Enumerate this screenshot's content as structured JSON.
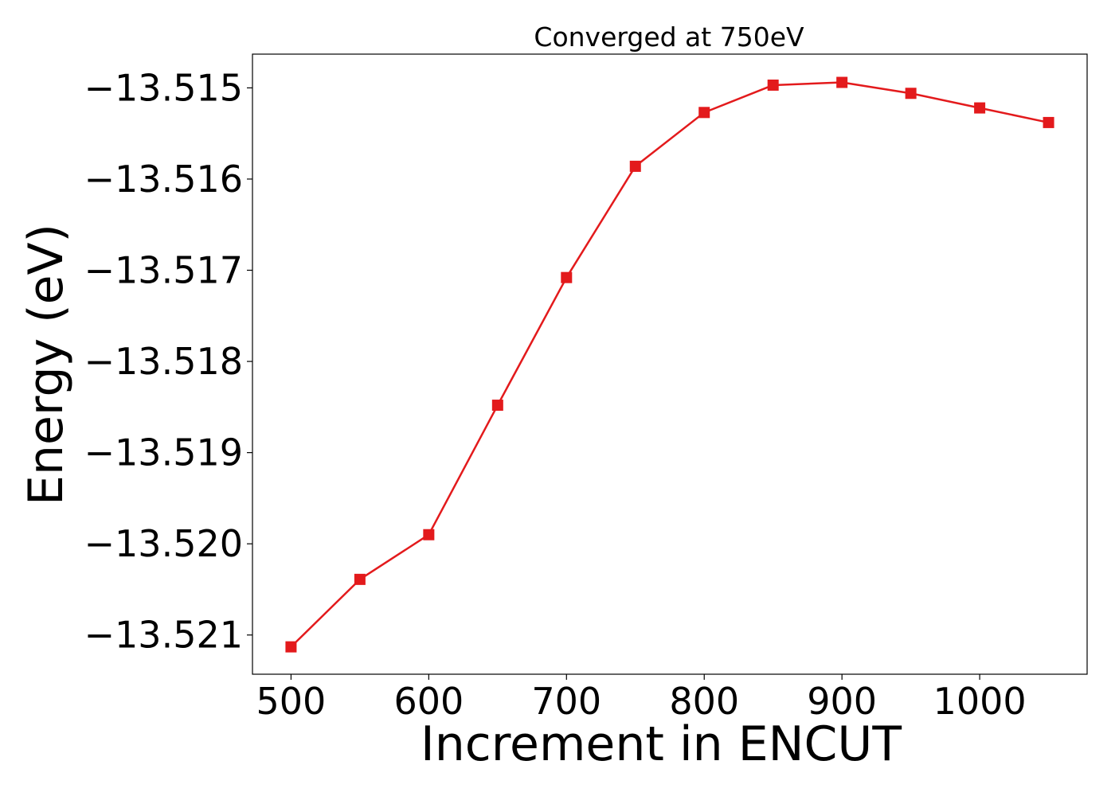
{
  "chart_data": {
    "type": "line",
    "title": "Converged at 750eV",
    "xlabel": "Increment in ENCUT",
    "ylabel": "Energy (eV)",
    "xlim": [
      472,
      1078
    ],
    "ylim": [
      -13.52143,
      -13.51463
    ],
    "xticks": [
      500,
      600,
      700,
      800,
      900,
      1000
    ],
    "xtick_labels": [
      "500",
      "600",
      "700",
      "800",
      "900",
      "1000"
    ],
    "yticks": [
      -13.515,
      -13.516,
      -13.517,
      -13.518,
      -13.519,
      -13.52,
      -13.521
    ],
    "ytick_labels": [
      "−13.515",
      "−13.516",
      "−13.517",
      "−13.518",
      "−13.519",
      "−13.520",
      "−13.521"
    ],
    "grid": false,
    "series": [
      {
        "color": "#e31a1c",
        "marker": "square",
        "x": [
          500,
          550,
          600,
          650,
          700,
          750,
          800,
          850,
          900,
          950,
          1000,
          1050
        ],
        "y": [
          -13.52113,
          -13.52039,
          -13.5199,
          -13.51848,
          -13.51708,
          -13.51586,
          -13.51527,
          -13.51497,
          -13.51494,
          -13.51506,
          -13.51522,
          -13.51538
        ]
      }
    ]
  }
}
